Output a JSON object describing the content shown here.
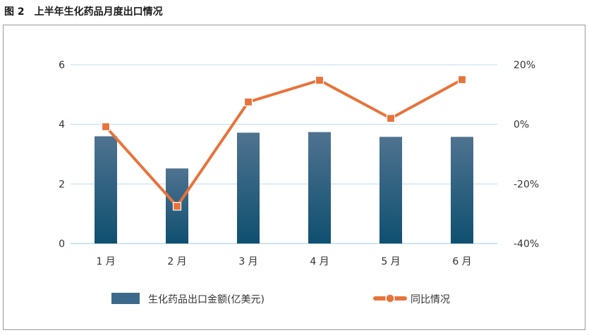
{
  "caption": {
    "figure_no": "图 2",
    "title": "上半年生化药品月度出口情况"
  },
  "colors": {
    "bar_top": "#4f7390",
    "bar_bottom": "#0f4f70",
    "line": "#e8733a",
    "marker": "#e8733a",
    "grid": "#bcdbe8",
    "axis": "#9fc9dc"
  },
  "chart_data": {
    "type": "bar+line",
    "categories": [
      "1 月",
      "2 月",
      "3 月",
      "4 月",
      "5 月",
      "6 月"
    ],
    "series": [
      {
        "name": "生化药品出口金额(亿美元)",
        "type": "bar",
        "axis": "left",
        "values": [
          3.6,
          2.52,
          3.72,
          3.74,
          3.58,
          3.58
        ]
      },
      {
        "name": "同比情况",
        "type": "line",
        "axis": "right",
        "unit": "%",
        "values": [
          -0.8,
          -27.5,
          7.5,
          14.8,
          2.0,
          15.0
        ]
      }
    ],
    "y_left": {
      "min": 0,
      "max": 6,
      "ticks": [
        0,
        2,
        4,
        6
      ],
      "tick_labels": [
        "0",
        "2",
        "4",
        "6"
      ]
    },
    "y_right": {
      "min": -40,
      "max": 20,
      "ticks": [
        -40,
        -20,
        0,
        20
      ],
      "tick_labels": [
        "-40%",
        "-20%",
        "0%",
        "20%"
      ]
    },
    "grid": true,
    "legend": {
      "placement": "bottom"
    }
  }
}
